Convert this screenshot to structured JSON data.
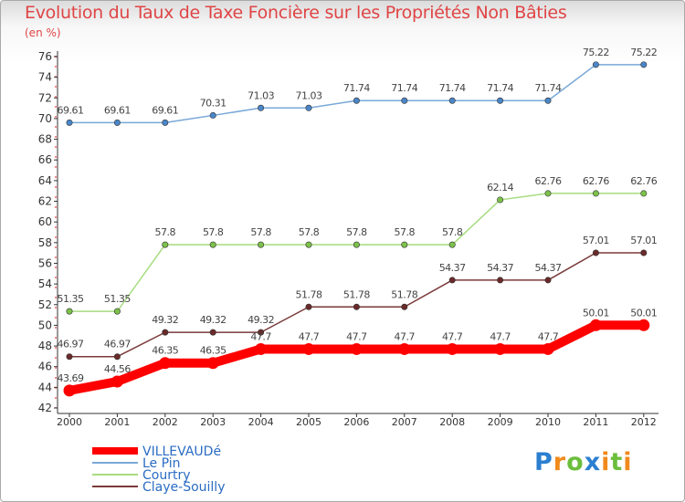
{
  "header": {
    "title": "Evolution du Taux de Taxe Foncière sur les Propriétés Non Bâties",
    "subtitle": "(en %)"
  },
  "logo": {
    "letters": [
      "P",
      "r",
      "o",
      "x",
      "i",
      "t",
      "i"
    ],
    "colors": [
      "#2b7fd0",
      "#f08a1c",
      "#6cbe3c",
      "#2b7fd0",
      "#f08a1c",
      "#6cbe3c",
      "#f08a1c"
    ]
  },
  "chart_data": {
    "type": "line",
    "title": "Evolution du Taux de Taxe Foncière sur les Propriétés Non Bâties",
    "ylabel": "(en %)",
    "xlabel": "",
    "x": [
      "2000",
      "2001",
      "2002",
      "2003",
      "2004",
      "2005",
      "2006",
      "2007",
      "2008",
      "2009",
      "2010",
      "2011",
      "2012"
    ],
    "ylim": [
      42,
      76
    ],
    "yticks": [
      42,
      44,
      46,
      48,
      50,
      52,
      54,
      56,
      58,
      60,
      62,
      64,
      66,
      68,
      70,
      72,
      74,
      76
    ],
    "grid": false,
    "legend": "bottom-left",
    "series": [
      {
        "name": "VILLEVAUDé",
        "color": "#ff0000",
        "point": "#ff0000",
        "bold": true,
        "values": [
          43.69,
          44.56,
          46.35,
          46.35,
          47.7,
          47.7,
          47.7,
          47.7,
          47.7,
          47.7,
          47.7,
          50.01,
          50.01
        ],
        "labels": [
          "43.69",
          "44.56",
          "46.35",
          "46.35",
          "47.7",
          "47.7",
          "47.7",
          "47.7",
          "47.7",
          "47.7",
          "47.7",
          "50.01",
          "50.01"
        ]
      },
      {
        "name": "Le Pin",
        "color": "#79a8d8",
        "point": "#4a86c8",
        "bold": false,
        "values": [
          69.61,
          69.61,
          69.61,
          70.31,
          71.03,
          71.03,
          71.74,
          71.74,
          71.74,
          71.74,
          71.74,
          75.22,
          75.22
        ],
        "labels": [
          "69.61",
          "69.61",
          "69.61",
          "70.31",
          "71.03",
          "71.03",
          "71.74",
          "71.74",
          "71.74",
          "71.74",
          "71.74",
          "75.22",
          "75.22"
        ]
      },
      {
        "name": "Courtry",
        "color": "#a6dc7e",
        "point": "#7cc14a",
        "bold": false,
        "values": [
          51.35,
          51.35,
          57.8,
          57.8,
          57.8,
          57.8,
          57.8,
          57.8,
          57.8,
          62.14,
          62.76,
          62.76,
          62.76
        ],
        "labels": [
          "51.35",
          "51.35",
          "57.8",
          "57.8",
          "57.8",
          "57.8",
          "57.8",
          "57.8",
          "57.8",
          "62.14",
          "62.76",
          "62.76",
          "62.76"
        ]
      },
      {
        "name": "Claye-Souilly",
        "color": "#7a3a3a",
        "point": "#6b2a2a",
        "bold": false,
        "values": [
          46.97,
          46.97,
          49.32,
          49.32,
          49.32,
          51.78,
          51.78,
          51.78,
          54.37,
          54.37,
          54.37,
          57.01,
          57.01
        ],
        "labels": [
          "46.97",
          "46.97",
          "49.32",
          "49.32",
          "49.32",
          "51.78",
          "51.78",
          "51.78",
          "54.37",
          "54.37",
          "54.37",
          "57.01",
          "57.01"
        ]
      }
    ]
  }
}
